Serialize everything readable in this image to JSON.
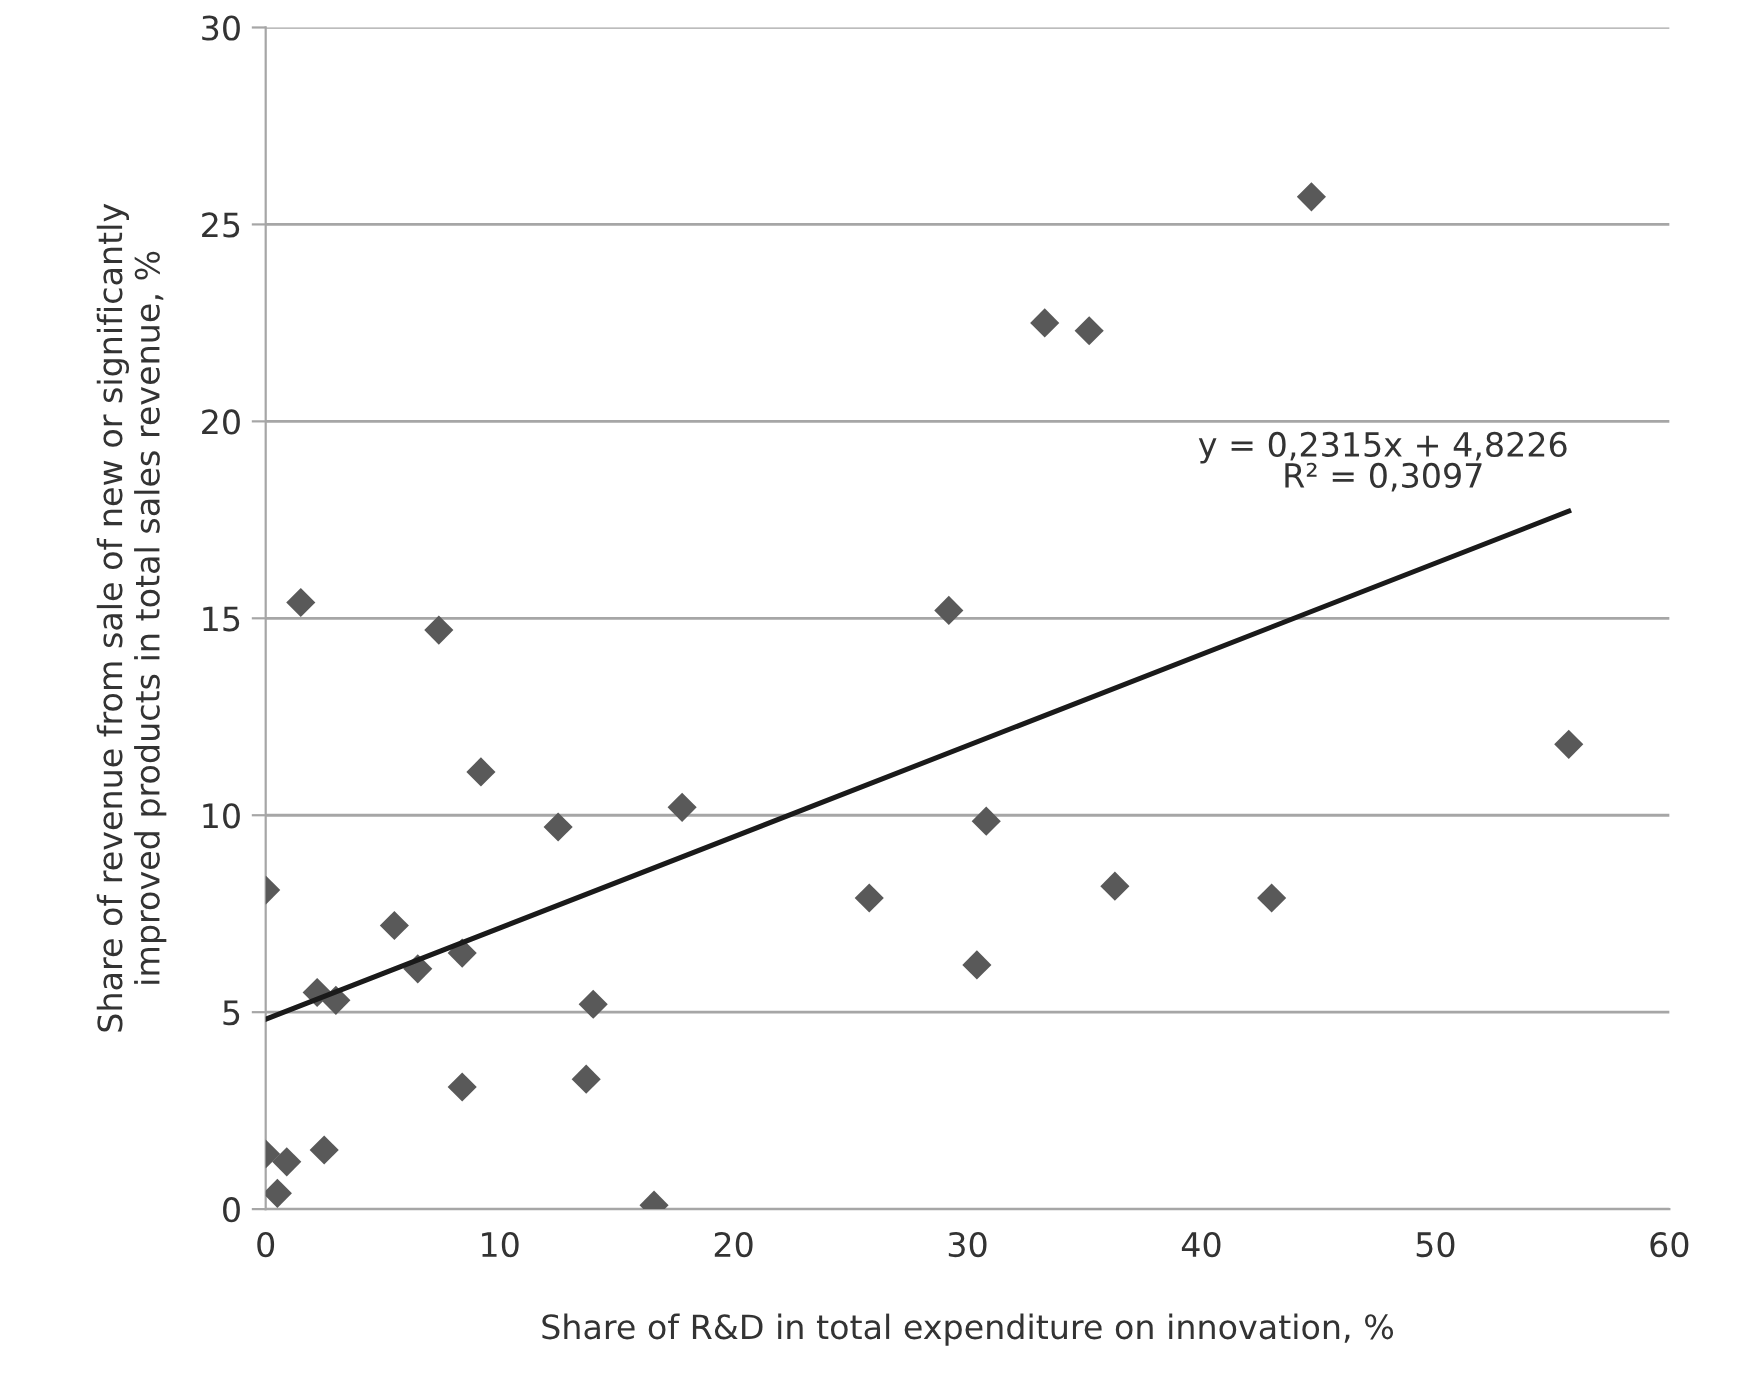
{
  "chart_data": {
    "type": "scatter",
    "xlabel": "Share of R&D in total expenditure on innovation, %",
    "ylabel": "Share of revenue from sale of new or significantly\nimproved products in total sales revenue, %",
    "series": [
      {
        "color": "#595959",
        "marker": "diamond",
        "x": [
          44.7,
          33.3,
          35.2,
          29.2,
          55.7,
          1.5,
          7.4,
          9.2,
          12.5,
          17.8,
          30.8,
          0,
          25.8,
          36.3,
          43.0,
          30.4,
          5.5,
          6.5,
          8.4,
          2.2,
          3.0,
          14.0,
          13.7,
          8.4,
          0,
          0.9,
          2.5,
          0.5,
          16.6
        ],
        "values": [
          25.7,
          22.5,
          22.3,
          15.2,
          11.8,
          15.4,
          14.7,
          11.1,
          9.7,
          10.2,
          9.85,
          8.1,
          7.9,
          8.2,
          7.9,
          6.2,
          7.2,
          6.1,
          6.5,
          5.5,
          5.3,
          5.2,
          3.3,
          3.1,
          1.4,
          1.2,
          1.5,
          0.4,
          0.1
        ]
      },
      {
        "type": "line",
        "color": "#1a1a1a",
        "marker": "none",
        "line_style": "solid",
        "x": [
          0,
          55.7
        ],
        "values": [
          4.82,
          17.72
        ]
      }
    ],
    "annotations": [
      {
        "text": "y = 0,2315x + 4,8226\nR² = 0,3097",
        "x": 55.7,
        "y": 17.72
      }
    ],
    "xlim": [
      0,
      60
    ],
    "xticks": [
      0,
      10,
      20,
      30,
      40,
      50,
      60
    ],
    "ylim": [
      0,
      30
    ],
    "yticks": [
      0,
      5,
      10,
      15,
      20,
      25,
      30
    ],
    "grid": "y",
    "legend": false
  }
}
